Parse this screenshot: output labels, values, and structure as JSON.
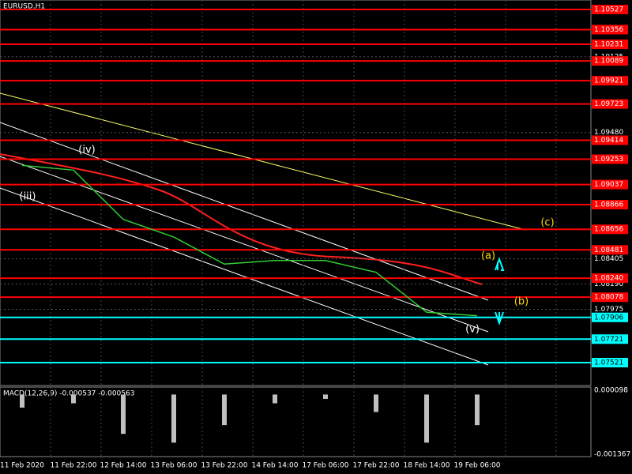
{
  "chart_data": {
    "type": "line",
    "title": "EURUSD,H1",
    "subtitle": "MACD(12,26,9) -0.000537 -0.000563",
    "categories": [
      "11 Feb 2020",
      "11 Feb 22:00",
      "12 Feb 14:00",
      "13 Feb 06:00",
      "13 Feb 22:00",
      "14 Feb 14:00",
      "17 Feb 06:00",
      "17 Feb 22:00",
      "18 Feb 14:00",
      "19 Feb 06:00"
    ],
    "series": [
      {
        "name": "EURUSD",
        "color": "#32cd32",
        "values": [
          1.092,
          1.0916,
          1.0874,
          1.0859,
          1.0836,
          1.0839,
          1.0839,
          1.0829,
          1.0795,
          1.0792
        ]
      },
      {
        "name": "MACD",
        "color": "#c0c0c0",
        "axis": "y2",
        "values": [
          -0.0003,
          -0.0002,
          -0.0009,
          -0.0011,
          -0.0007,
          -0.0002,
          -0.0001,
          -0.0004,
          -0.0011,
          -0.0007
        ]
      }
    ],
    "ylim": [
      1.07326,
      1.10608
    ],
    "yticks": [
      {
        "value": 1.10125,
        "label": "1.10125"
      },
      {
        "value": 1.0948,
        "label": "1.09480"
      },
      {
        "value": 1.08405,
        "label": "1.08405"
      },
      {
        "value": 1.0819,
        "label": "1.08190"
      },
      {
        "value": 1.07975,
        "label": "1.07975"
      }
    ],
    "levels": [
      {
        "value": 1.10527,
        "label": "1.10527",
        "color": "#ff0000"
      },
      {
        "value": 1.10356,
        "label": "1.10356",
        "color": "#ff0000"
      },
      {
        "value": 1.10231,
        "label": "1.10231",
        "color": "#ff0000"
      },
      {
        "value": 1.10089,
        "label": "1.10089",
        "color": "#ff0000"
      },
      {
        "value": 1.09921,
        "label": "1.09921",
        "color": "#ff0000"
      },
      {
        "value": 1.09723,
        "label": "1.09723",
        "color": "#ff0000"
      },
      {
        "value": 1.09414,
        "label": "1.09414",
        "color": "#ff0000"
      },
      {
        "value": 1.09253,
        "label": "1.09253",
        "color": "#ff0000"
      },
      {
        "value": 1.09037,
        "label": "1.09037",
        "color": "#ff0000"
      },
      {
        "value": 1.08866,
        "label": "1.08866",
        "color": "#ff0000"
      },
      {
        "value": 1.08656,
        "label": "1.08656",
        "color": "#ff0000"
      },
      {
        "value": 1.08481,
        "label": "1.08481",
        "color": "#ff0000"
      },
      {
        "value": 1.0824,
        "label": "1.08240",
        "color": "#ff0000"
      },
      {
        "value": 1.08078,
        "label": "1.08078",
        "color": "#ff0000"
      },
      {
        "value": 1.07906,
        "label": "1.07906",
        "color": "#00ffff"
      },
      {
        "value": 1.07721,
        "label": "1.07721",
        "color": "#00ffff"
      },
      {
        "value": 1.07521,
        "label": "1.07521",
        "color": "#00ffff"
      }
    ],
    "y2lim": [
      -0.00142,
      0.00017
    ],
    "y2ticks": [
      {
        "value": 9.8e-05,
        "label": "0.000098"
      },
      {
        "value": -0.001367,
        "label": "-0.001367"
      }
    ],
    "annotations": [
      "(iii)",
      "(iv)",
      "(v)",
      "(a)",
      "(b)",
      "(c)"
    ]
  }
}
